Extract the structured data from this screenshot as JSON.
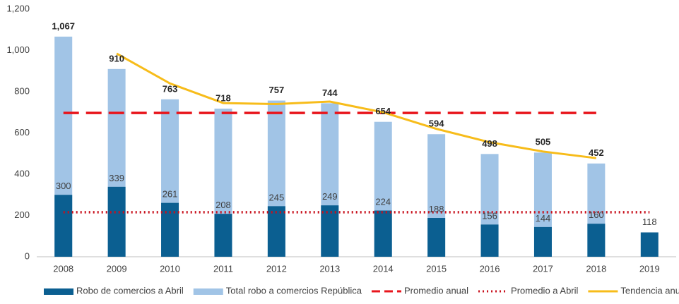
{
  "chart_data": {
    "type": "bar",
    "categories": [
      "2008",
      "2009",
      "2010",
      "2011",
      "2012",
      "2013",
      "2014",
      "2015",
      "2016",
      "2017",
      "2018",
      "2019"
    ],
    "ylim": [
      0,
      1200
    ],
    "yticks": [
      0,
      200,
      400,
      600,
      800,
      {
        "value": 1000,
        "label": "1,000"
      },
      {
        "value": 1200,
        "label": "1,200"
      }
    ],
    "series": [
      {
        "name": "Robo de comercios a Abril",
        "color": "#0b5f91",
        "kind": "bar",
        "values": [
          300,
          339,
          261,
          208,
          245,
          249,
          224,
          188,
          156,
          144,
          160,
          118
        ]
      },
      {
        "name": "Total robo a comercios República",
        "color": "#a1c4e6",
        "kind": "bar",
        "values": [
          1067,
          910,
          763,
          718,
          757,
          744,
          654,
          594,
          498,
          505,
          452,
          null
        ],
        "value_labels": [
          "1,067",
          "910",
          "763",
          "718",
          "757",
          "744",
          "654",
          "594",
          "498",
          "505",
          "452",
          null
        ]
      },
      {
        "name": "Promedio anual",
        "color": "#e8161d",
        "kind": "line",
        "dash": "dashed",
        "values": [
          697,
          697,
          697,
          697,
          697,
          697,
          697,
          697,
          697,
          697,
          697,
          null
        ]
      },
      {
        "name": "Promedio a Abril",
        "color": "#c8101c",
        "kind": "line",
        "dash": "dotted",
        "values": [
          216,
          216,
          216,
          216,
          216,
          216,
          216,
          216,
          216,
          216,
          216,
          216
        ]
      },
      {
        "name": "Tendencia anual",
        "color": "#f7bc1a",
        "kind": "line",
        "dash": "solid",
        "values": [
          null,
          985,
          840,
          745,
          740,
          752,
          700,
          620,
          555,
          510,
          478,
          null
        ]
      }
    ]
  }
}
